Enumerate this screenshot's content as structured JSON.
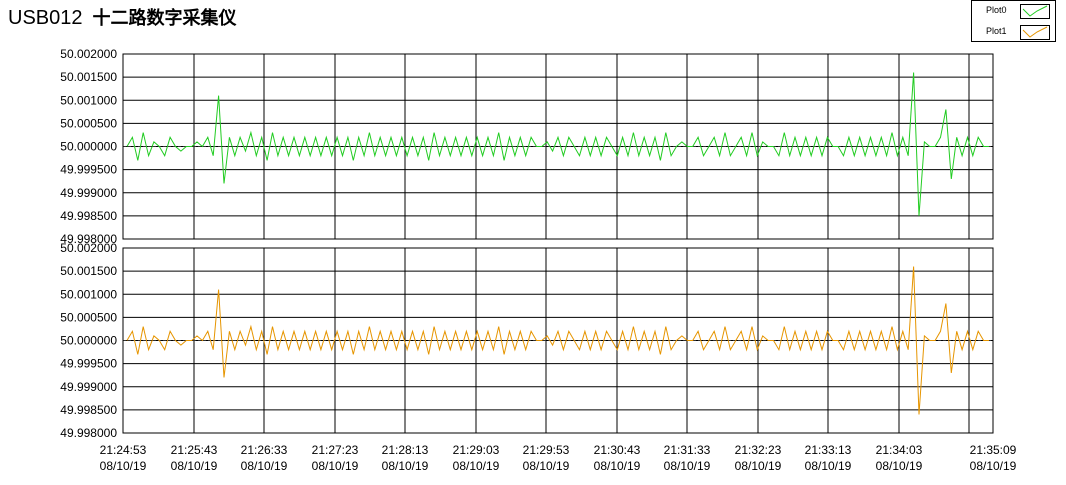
{
  "app": {
    "title": "USB012",
    "subtitle": "十二路数字采集仪"
  },
  "legend": {
    "items": [
      {
        "label": "Plot0",
        "color": "#22cc22"
      },
      {
        "label": "Plot1",
        "color": "#e69500"
      }
    ]
  },
  "chart_data": [
    {
      "type": "line",
      "series": [
        {
          "name": "Plot0",
          "color": "#22cc22",
          "values": [
            50.0,
            50.0002,
            49.9997,
            50.0003,
            49.9998,
            50.0001,
            50.0,
            49.9998,
            50.0002,
            50.0,
            49.9999,
            50.0,
            50.0,
            50.0001,
            50.0,
            50.0002,
            49.9998,
            50.0011,
            49.9992,
            50.0002,
            49.9998,
            50.0002,
            49.9999,
            50.0003,
            49.9998,
            50.0002,
            49.9997,
            50.0003,
            49.9998,
            50.0002,
            49.9998,
            50.0002,
            49.9998,
            50.0002,
            49.9998,
            50.0002,
            49.9998,
            50.0002,
            49.9998,
            50.0002,
            49.9998,
            50.0002,
            49.9997,
            50.0002,
            49.9998,
            50.0003,
            49.9998,
            50.0002,
            49.9998,
            50.0002,
            49.9998,
            50.0002,
            49.9998,
            50.0002,
            49.9998,
            50.0002,
            49.9997,
            50.0003,
            49.9998,
            50.0002,
            49.9998,
            50.0002,
            49.9998,
            50.0002,
            49.9998,
            50.0002,
            49.9998,
            50.0002,
            49.9998,
            50.0003,
            49.9997,
            50.0002,
            49.9998,
            50.0002,
            49.9998,
            50.0002,
            50.0,
            50.0,
            50.0001,
            49.9999,
            50.0002,
            49.9998,
            50.0002,
            50.0,
            49.9998,
            50.0002,
            49.9998,
            50.0002,
            49.9998,
            50.0002,
            50.0,
            49.9998,
            50.0002,
            49.9998,
            50.0003,
            49.9998,
            50.0002,
            49.9998,
            50.0002,
            49.9997,
            50.0003,
            49.9998,
            50.0,
            50.0001,
            50.0,
            50.0,
            50.0002,
            49.9998,
            50.0,
            50.0002,
            49.9998,
            50.0003,
            49.9998,
            50.0,
            50.0002,
            49.9998,
            50.0003,
            49.9998,
            50.0001,
            50.0,
            50.0,
            49.9998,
            50.0003,
            49.9998,
            50.0002,
            49.9998,
            50.0002,
            49.9998,
            50.0002,
            49.9998,
            50.0002,
            50.0,
            50.0,
            49.9998,
            50.0002,
            49.9998,
            50.0002,
            49.9998,
            50.0002,
            49.9998,
            50.0002,
            49.9998,
            50.0003,
            49.9998,
            50.0002,
            49.9998,
            50.0016,
            49.9985,
            50.0001,
            50.0,
            50.0,
            50.0002,
            50.0008,
            49.9993,
            50.0002,
            49.9998,
            50.0002,
            49.9998,
            50.0002,
            50.0,
            50.0
          ]
        }
      ],
      "ylim": [
        49.998,
        50.002
      ],
      "yticks": [
        "50.002000",
        "50.001500",
        "50.001000",
        "50.000500",
        "50.000000",
        "49.999500",
        "49.999000",
        "49.998500",
        "49.998000"
      ],
      "grid": true
    },
    {
      "type": "line",
      "series": [
        {
          "name": "Plot1",
          "color": "#e69500",
          "values": [
            50.0,
            50.0002,
            49.9997,
            50.0003,
            49.9998,
            50.0001,
            50.0,
            49.9998,
            50.0002,
            50.0,
            49.9999,
            50.0,
            50.0,
            50.0001,
            50.0,
            50.0002,
            49.9998,
            50.0011,
            49.9992,
            50.0002,
            49.9998,
            50.0002,
            49.9999,
            50.0003,
            49.9998,
            50.0002,
            49.9997,
            50.0003,
            49.9998,
            50.0002,
            49.9998,
            50.0002,
            49.9998,
            50.0002,
            49.9998,
            50.0002,
            49.9998,
            50.0002,
            49.9998,
            50.0002,
            49.9998,
            50.0002,
            49.9997,
            50.0002,
            49.9998,
            50.0003,
            49.9998,
            50.0002,
            49.9998,
            50.0002,
            49.9998,
            50.0002,
            49.9998,
            50.0002,
            49.9998,
            50.0002,
            49.9997,
            50.0003,
            49.9998,
            50.0002,
            49.9998,
            50.0002,
            49.9998,
            50.0002,
            49.9998,
            50.0002,
            49.9998,
            50.0002,
            49.9998,
            50.0003,
            49.9997,
            50.0002,
            49.9998,
            50.0002,
            49.9998,
            50.0002,
            50.0,
            50.0,
            50.0001,
            49.9999,
            50.0002,
            49.9998,
            50.0002,
            50.0,
            49.9998,
            50.0002,
            49.9998,
            50.0002,
            49.9998,
            50.0002,
            50.0,
            49.9998,
            50.0002,
            49.9998,
            50.0003,
            49.9998,
            50.0002,
            49.9998,
            50.0002,
            49.9997,
            50.0003,
            49.9998,
            50.0,
            50.0001,
            50.0,
            50.0,
            50.0002,
            49.9998,
            50.0,
            50.0002,
            49.9998,
            50.0003,
            49.9998,
            50.0,
            50.0002,
            49.9998,
            50.0003,
            49.9998,
            50.0001,
            50.0,
            50.0,
            49.9998,
            50.0003,
            49.9998,
            50.0002,
            49.9998,
            50.0002,
            49.9998,
            50.0002,
            49.9998,
            50.0002,
            50.0,
            50.0,
            49.9998,
            50.0002,
            49.9998,
            50.0002,
            49.9998,
            50.0002,
            49.9998,
            50.0002,
            49.9998,
            50.0003,
            49.9998,
            50.0002,
            49.9998,
            50.0016,
            49.9984,
            50.0001,
            50.0,
            50.0,
            50.0002,
            50.0008,
            49.9993,
            50.0002,
            49.9998,
            50.0002,
            49.9998,
            50.0002,
            50.0,
            50.0
          ]
        }
      ],
      "ylim": [
        49.998,
        50.002
      ],
      "yticks": [
        "50.002000",
        "50.001500",
        "50.001000",
        "50.000500",
        "50.000000",
        "49.999500",
        "49.999000",
        "49.998500",
        "49.998000"
      ],
      "grid": true
    }
  ],
  "x_axis": {
    "ticks": [
      {
        "time": "21:24:53",
        "date": "08/10/19"
      },
      {
        "time": "21:25:43",
        "date": "08/10/19"
      },
      {
        "time": "21:26:33",
        "date": "08/10/19"
      },
      {
        "time": "21:27:23",
        "date": "08/10/19"
      },
      {
        "time": "21:28:13",
        "date": "08/10/19"
      },
      {
        "time": "21:29:03",
        "date": "08/10/19"
      },
      {
        "time": "21:29:53",
        "date": "08/10/19"
      },
      {
        "time": "21:30:43",
        "date": "08/10/19"
      },
      {
        "time": "21:31:33",
        "date": "08/10/19"
      },
      {
        "time": "21:32:23",
        "date": "08/10/19"
      },
      {
        "time": "21:33:13",
        "date": "08/10/19"
      },
      {
        "time": "21:34:03",
        "date": "08/10/19"
      },
      {
        "time": "21:35:09",
        "date": "08/10/19"
      }
    ]
  }
}
